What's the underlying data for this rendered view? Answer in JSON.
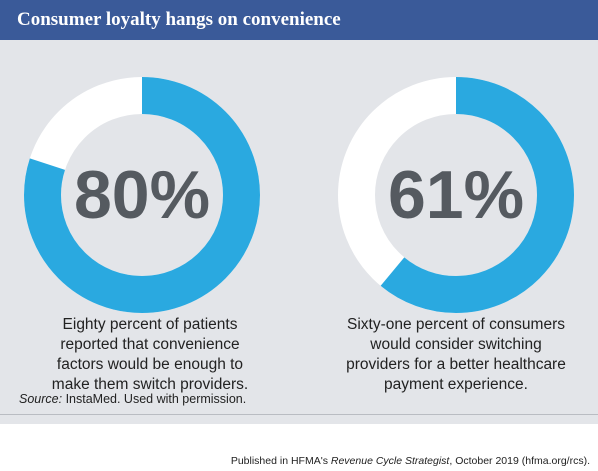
{
  "header": {
    "title": "Consumer loyalty hangs on convenience"
  },
  "chart_data": [
    {
      "type": "pie",
      "values": [
        80,
        20
      ],
      "center_label": "80%",
      "caption_lines": [
        "Eighty percent of patients",
        "reported that convenience",
        "factors would be enough to",
        "make them switch providers."
      ],
      "colors": {
        "filled": "#2aa9e0",
        "remainder": "#ffffff"
      }
    },
    {
      "type": "pie",
      "values": [
        61,
        39
      ],
      "center_label": "61%",
      "caption_lines": [
        "Sixty-one percent of consumers",
        "would consider switching",
        "providers for a better healthcare",
        "payment experience."
      ],
      "colors": {
        "filled": "#2aa9e0",
        "remainder": "#ffffff"
      }
    }
  ],
  "source": {
    "label": "Source:",
    "text": " InstaMed. Used with permission."
  },
  "published": {
    "prefix": "Published in HFMA's ",
    "publication": "Revenue Cycle Strategist",
    "suffix": ", October 2019 (hfma.org/rcs)."
  }
}
